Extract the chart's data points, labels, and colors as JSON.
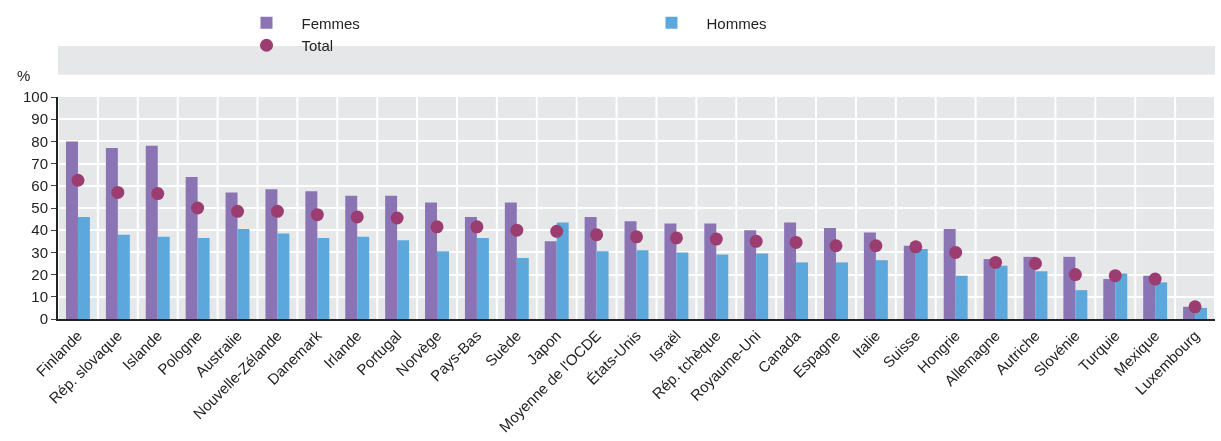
{
  "chart_data": {
    "type": "bar",
    "ylabel": "%",
    "categories": [
      "Finlande",
      "Rép. slovaque",
      "Islande",
      "Pologne",
      "Australie",
      "Nouvelle-Zélande",
      "Danemark",
      "Irlande",
      "Portugal",
      "Norvège",
      "Pays-Bas",
      "Suède",
      "Japon",
      "Moyenne de l'OCDE",
      "États-Unis",
      "Israël",
      "Rép. tchèque",
      "Royaume-Uni",
      "Canada",
      "Espagne",
      "Italie",
      "Suisse",
      "Hongrie",
      "Allemagne",
      "Autriche",
      "Slovénie",
      "Turquie",
      "Mexique",
      "Luxembourg"
    ],
    "series": [
      {
        "name": "Femmes",
        "color": "#8a74b4",
        "values": [
          80,
          77,
          78,
          64,
          57,
          58.5,
          57.5,
          55.5,
          55.5,
          52.5,
          46,
          52.5,
          35,
          46,
          44,
          43,
          43,
          40,
          43.5,
          41,
          39,
          33,
          40.5,
          27,
          28,
          28,
          18,
          19.5,
          5.5
        ]
      },
      {
        "name": "Hommes",
        "color": "#5ca8dc",
        "values": [
          46,
          38,
          37,
          36.5,
          40.5,
          38.5,
          36.5,
          37,
          35.5,
          30.5,
          36.5,
          27.5,
          43.5,
          30.5,
          31,
          30,
          29,
          29.5,
          25.5,
          25.5,
          26.5,
          31.5,
          19.5,
          24,
          21.5,
          13,
          20.5,
          16.5,
          5
        ]
      },
      {
        "name": "Total",
        "type": "scatter",
        "color": "#9b3d70",
        "values": [
          62.5,
          57,
          56.5,
          50,
          48.5,
          48.5,
          47,
          46,
          45.5,
          41.5,
          41.5,
          40,
          39.5,
          38,
          37,
          36.5,
          36,
          35,
          34.5,
          33,
          33,
          32.5,
          30,
          25.5,
          25,
          20,
          19.5,
          18,
          5.5
        ]
      }
    ],
    "ylim": [
      0,
      100
    ],
    "yticks": [
      0,
      10,
      20,
      30,
      40,
      50,
      60,
      70,
      80,
      90,
      100
    ],
    "grid": true,
    "legend": "top",
    "marker": "circle"
  }
}
